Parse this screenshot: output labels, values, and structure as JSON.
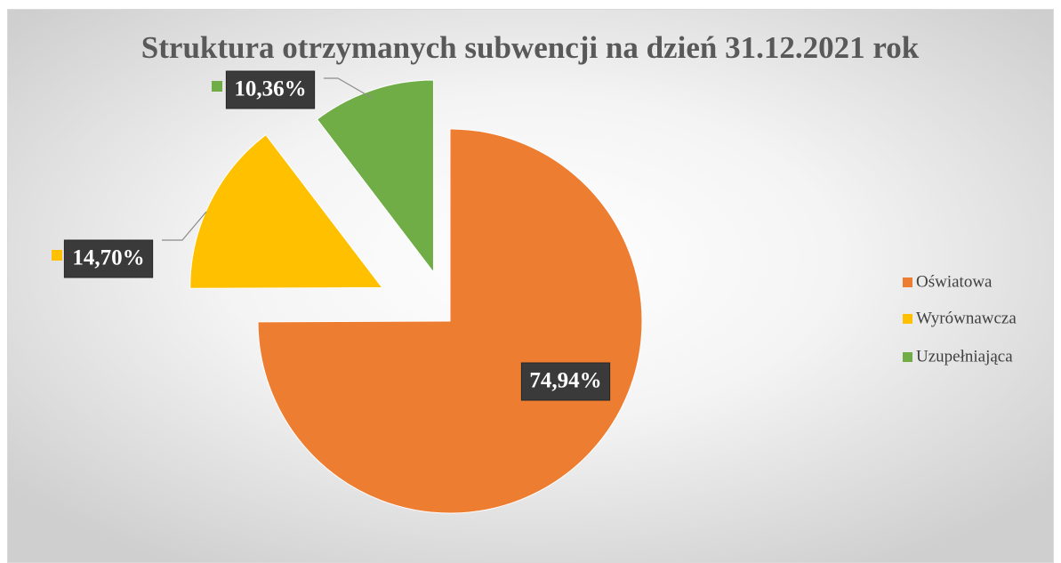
{
  "chart_data": {
    "type": "pie",
    "title": "Struktura otrzymanych subwencji na dzień 31.12.2021 rok",
    "categories": [
      "Oświatowa",
      "Wyrównawcza",
      "Uzupełniająca"
    ],
    "values": [
      74.94,
      14.7,
      10.36
    ],
    "value_labels": [
      "74,94%",
      "14,70%",
      "10,36%"
    ],
    "colors": [
      "#ed7d31",
      "#ffc000",
      "#70ad47"
    ]
  }
}
